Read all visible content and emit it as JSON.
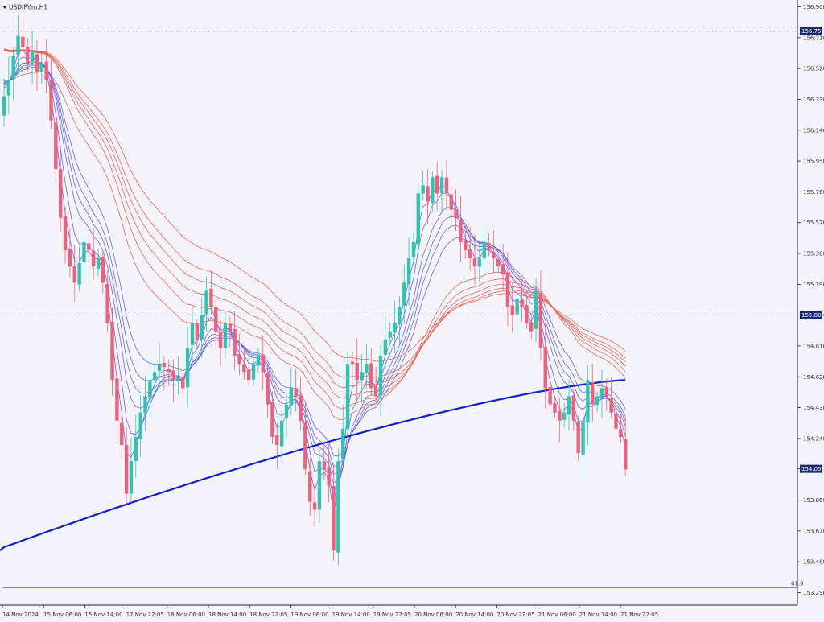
{
  "window": {
    "symbol_title": "USDJPY.m,H1",
    "menu_icon": "triangle-down-icon"
  },
  "colors": {
    "background": "#f5f3fa",
    "bull": "#2ec4b0",
    "bear": "#f0607a",
    "ema_fast": "#5555ee",
    "ema_slow": "#ee5544",
    "sma_long": "#1420c8",
    "hline": "#4a4a8a",
    "axis": "#222222"
  },
  "chart_data": {
    "type": "candlestick",
    "price_range": [
      153.29,
      156.9
    ],
    "y_ticks": [
      "156.900",
      "156.710",
      "156.520",
      "156.330",
      "156.140",
      "155.950",
      "155.760",
      "155.570",
      "155.380",
      "155.190",
      "155.000",
      "154.810",
      "154.620",
      "154.430",
      "154.240",
      "154.053",
      "153.860",
      "153.670",
      "153.480",
      "153.290"
    ],
    "x_labels": [
      "14 Nov 2024",
      "15 Nov 06:00",
      "15 Nov 14:00",
      "17 Nov 22:05",
      "18 Nov 06:00",
      "18 Nov 14:00",
      "18 Nov 22:05",
      "19 Nov 06:00",
      "19 Nov 14:00",
      "19 Nov 22:05",
      "20 Nov 06:00",
      "20 Nov 14:00",
      "20 Nov 22:05",
      "21 Nov 06:00",
      "21 Nov 14:00",
      "21 Nov 22:05"
    ],
    "hlines": [
      {
        "price": 156.75,
        "label": "156.750"
      },
      {
        "price": 155.0,
        "label": "155.000"
      }
    ],
    "current_price": {
      "price": 154.053,
      "label": "154.053"
    },
    "fib_level": {
      "price": 153.32,
      "label": "61.8"
    },
    "closes": [
      156.35,
      156.45,
      156.6,
      156.72,
      156.65,
      156.55,
      156.62,
      156.5,
      156.55,
      156.45,
      156.2,
      155.9,
      155.6,
      155.4,
      155.3,
      155.2,
      155.32,
      155.45,
      155.4,
      155.3,
      155.35,
      155.2,
      154.95,
      154.6,
      154.35,
      154.2,
      153.9,
      154.1,
      154.25,
      154.4,
      154.5,
      154.6,
      154.65,
      154.7,
      154.68,
      154.65,
      154.6,
      154.62,
      154.55,
      154.8,
      154.95,
      154.85,
      155.0,
      155.15,
      155.05,
      154.9,
      154.8,
      154.95,
      154.9,
      154.75,
      154.7,
      154.65,
      154.6,
      154.7,
      154.75,
      154.65,
      154.45,
      154.25,
      154.2,
      154.35,
      154.45,
      154.55,
      154.5,
      154.35,
      154.05,
      153.85,
      153.8,
      154.1,
      154.05,
      153.95,
      153.55,
      154.1,
      154.3,
      154.7,
      154.7,
      154.6,
      154.65,
      154.7,
      154.55,
      154.5,
      154.75,
      154.85,
      154.9,
      154.95,
      155.05,
      155.2,
      155.35,
      155.45,
      155.75,
      155.8,
      155.7,
      155.85,
      155.75,
      155.85,
      155.75,
      155.65,
      155.6,
      155.45,
      155.4,
      155.35,
      155.3,
      155.35,
      155.45,
      155.4,
      155.35,
      155.3,
      155.25,
      155.05,
      155.0,
      155.1,
      155.05,
      154.95,
      154.9,
      155.15,
      154.8,
      154.55,
      154.45,
      154.4,
      154.35,
      154.4,
      154.5,
      154.35,
      154.15,
      154.35,
      154.6,
      154.45,
      154.5,
      154.55,
      154.5,
      154.4,
      154.3,
      154.25,
      154.05
    ],
    "sma_long": {
      "type": "SMA",
      "start": 153.57,
      "end": 154.6
    }
  }
}
